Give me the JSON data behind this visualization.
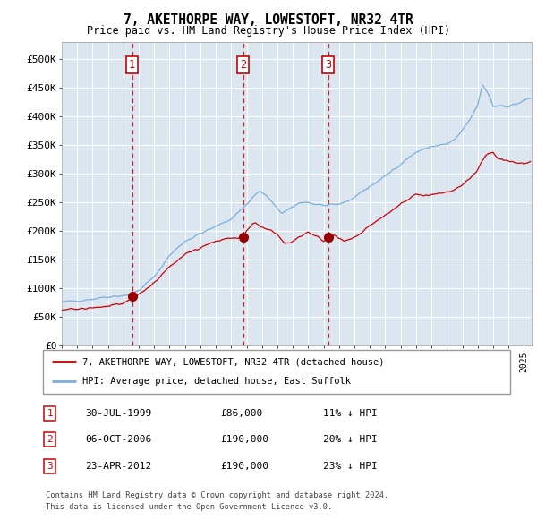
{
  "title": "7, AKETHORPE WAY, LOWESTOFT, NR32 4TR",
  "subtitle": "Price paid vs. HM Land Registry's House Price Index (HPI)",
  "legend_line1": "7, AKETHORPE WAY, LOWESTOFT, NR32 4TR (detached house)",
  "legend_line2": "HPI: Average price, detached house, East Suffolk",
  "footer1": "Contains HM Land Registry data © Crown copyright and database right 2024.",
  "footer2": "This data is licensed under the Open Government Licence v3.0.",
  "sales": [
    {
      "num": 1,
      "date": "30-JUL-1999",
      "price": 86000,
      "pct": "11%",
      "dir": "↓",
      "year_x": 1999.57
    },
    {
      "num": 2,
      "date": "06-OCT-2006",
      "price": 190000,
      "pct": "20%",
      "dir": "↓",
      "year_x": 2006.77
    },
    {
      "num": 3,
      "date": "23-APR-2012",
      "price": 190000,
      "pct": "23%",
      "dir": "↓",
      "year_x": 2012.31
    }
  ],
  "hpi_color": "#7aaddc",
  "price_color": "#cc0000",
  "sale_dot_color": "#990000",
  "vline_color": "#cc0000",
  "plot_bg_color": "#dce6f1",
  "grid_color": "#ffffff",
  "ylim": [
    0,
    530000
  ],
  "xlim_start": 1995,
  "xlim_end": 2025.5,
  "yticks": [
    0,
    50000,
    100000,
    150000,
    200000,
    250000,
    300000,
    350000,
    400000,
    450000,
    500000
  ],
  "ytick_labels": [
    "£0",
    "£50K",
    "£100K",
    "£150K",
    "£200K",
    "£250K",
    "£300K",
    "£350K",
    "£400K",
    "£450K",
    "£500K"
  ]
}
